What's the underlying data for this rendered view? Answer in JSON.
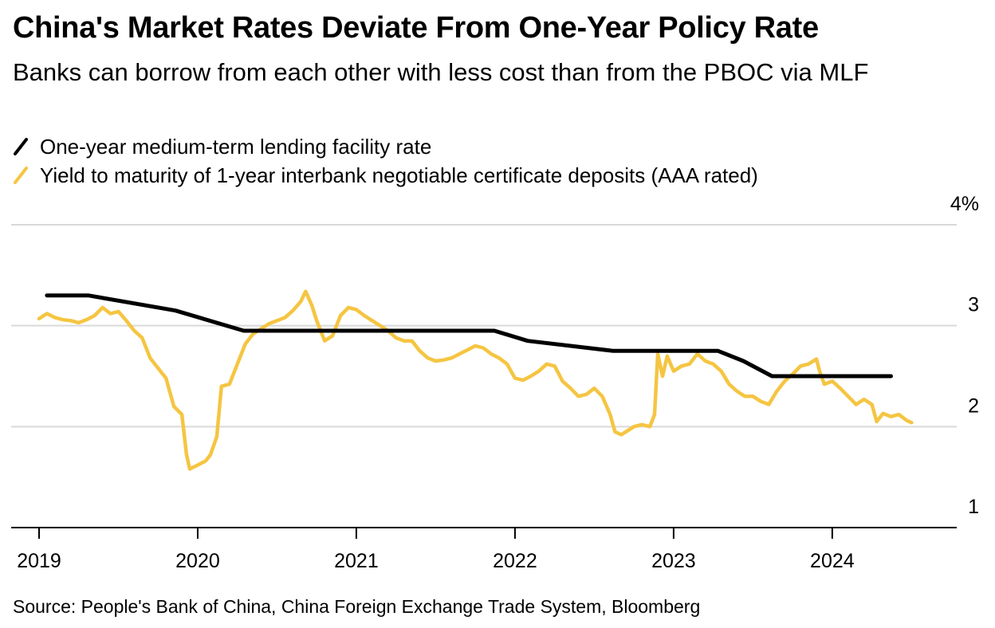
{
  "title": "China's Market Rates Deviate From One-Year Policy Rate",
  "subtitle": "Banks can borrow from each other with less cost than from the PBOC via MLF",
  "source": "Source: People's Bank of China, China Foreign Exchange Trade System, Bloomberg",
  "colors": {
    "mlf": "#000000",
    "ncd": "#f5c542",
    "grid": "#d9d9d9",
    "axis": "#000000"
  },
  "legend": [
    {
      "label": "One-year medium-term lending facility rate",
      "color": "#000000"
    },
    {
      "label": "Yield to maturity of 1-year interbank negotiable certificate deposits (AAA rated)",
      "color": "#f5c542"
    }
  ],
  "chart_data": {
    "type": "line",
    "title": "China's Market Rates Deviate From One-Year Policy Rate",
    "xlabel": "",
    "ylabel": "",
    "xlim": [
      2019.0,
      2024.85
    ],
    "ylim": [
      1,
      4
    ],
    "y_ticks": [
      {
        "value": 4,
        "label": "4%"
      },
      {
        "value": 3,
        "label": "3"
      },
      {
        "value": 2,
        "label": "2"
      },
      {
        "value": 1,
        "label": "1"
      }
    ],
    "x_ticks": [
      {
        "value": 2019,
        "label": "2019"
      },
      {
        "value": 2020,
        "label": "2020"
      },
      {
        "value": 2021,
        "label": "2021"
      },
      {
        "value": 2022,
        "label": "2022"
      },
      {
        "value": 2023,
        "label": "2023"
      },
      {
        "value": 2024,
        "label": "2024"
      }
    ],
    "grid": true,
    "legend_position": "top-left",
    "series": [
      {
        "name": "One-year medium-term lending facility rate",
        "color": "#000000",
        "step": true,
        "points": [
          [
            2019.05,
            3.3
          ],
          [
            2019.31,
            3.3
          ],
          [
            2019.86,
            3.15
          ],
          [
            2020.29,
            2.95
          ],
          [
            2021.87,
            2.95
          ],
          [
            2022.08,
            2.85
          ],
          [
            2022.62,
            2.75
          ],
          [
            2023.28,
            2.75
          ],
          [
            2023.44,
            2.65
          ],
          [
            2023.62,
            2.5
          ],
          [
            2024.37,
            2.5
          ]
        ]
      },
      {
        "name": "Yield to maturity of 1-year interbank negotiable certificate deposits (AAA rated)",
        "color": "#f5c542",
        "points": [
          [
            2019.0,
            3.07
          ],
          [
            2019.05,
            3.12
          ],
          [
            2019.1,
            3.08
          ],
          [
            2019.15,
            3.06
          ],
          [
            2019.2,
            3.05
          ],
          [
            2019.25,
            3.03
          ],
          [
            2019.3,
            3.06
          ],
          [
            2019.35,
            3.1
          ],
          [
            2019.4,
            3.18
          ],
          [
            2019.45,
            3.12
          ],
          [
            2019.5,
            3.14
          ],
          [
            2019.55,
            3.05
          ],
          [
            2019.6,
            2.95
          ],
          [
            2019.65,
            2.88
          ],
          [
            2019.7,
            2.68
          ],
          [
            2019.75,
            2.58
          ],
          [
            2019.8,
            2.48
          ],
          [
            2019.85,
            2.2
          ],
          [
            2019.9,
            2.12
          ],
          [
            2019.93,
            1.72
          ],
          [
            2019.95,
            1.58
          ],
          [
            2020.0,
            1.62
          ],
          [
            2020.05,
            1.66
          ],
          [
            2020.08,
            1.72
          ],
          [
            2020.12,
            1.9
          ],
          [
            2020.15,
            2.4
          ],
          [
            2020.2,
            2.42
          ],
          [
            2020.25,
            2.62
          ],
          [
            2020.3,
            2.82
          ],
          [
            2020.35,
            2.92
          ],
          [
            2020.4,
            2.97
          ],
          [
            2020.45,
            3.02
          ],
          [
            2020.5,
            3.05
          ],
          [
            2020.55,
            3.08
          ],
          [
            2020.6,
            3.15
          ],
          [
            2020.65,
            3.24
          ],
          [
            2020.68,
            3.34
          ],
          [
            2020.72,
            3.2
          ],
          [
            2020.75,
            3.05
          ],
          [
            2020.8,
            2.85
          ],
          [
            2020.85,
            2.9
          ],
          [
            2020.9,
            3.1
          ],
          [
            2020.95,
            3.18
          ],
          [
            2021.0,
            3.16
          ],
          [
            2021.05,
            3.1
          ],
          [
            2021.1,
            3.05
          ],
          [
            2021.15,
            3.0
          ],
          [
            2021.2,
            2.95
          ],
          [
            2021.25,
            2.88
          ],
          [
            2021.3,
            2.85
          ],
          [
            2021.35,
            2.85
          ],
          [
            2021.4,
            2.75
          ],
          [
            2021.45,
            2.68
          ],
          [
            2021.5,
            2.65
          ],
          [
            2021.55,
            2.66
          ],
          [
            2021.6,
            2.68
          ],
          [
            2021.65,
            2.72
          ],
          [
            2021.7,
            2.76
          ],
          [
            2021.75,
            2.8
          ],
          [
            2021.8,
            2.78
          ],
          [
            2021.85,
            2.72
          ],
          [
            2021.9,
            2.68
          ],
          [
            2021.95,
            2.62
          ],
          [
            2022.0,
            2.48
          ],
          [
            2022.05,
            2.46
          ],
          [
            2022.1,
            2.5
          ],
          [
            2022.15,
            2.55
          ],
          [
            2022.2,
            2.62
          ],
          [
            2022.25,
            2.6
          ],
          [
            2022.3,
            2.45
          ],
          [
            2022.35,
            2.38
          ],
          [
            2022.4,
            2.3
          ],
          [
            2022.45,
            2.32
          ],
          [
            2022.5,
            2.38
          ],
          [
            2022.55,
            2.3
          ],
          [
            2022.6,
            2.12
          ],
          [
            2022.63,
            1.95
          ],
          [
            2022.67,
            1.92
          ],
          [
            2022.7,
            1.95
          ],
          [
            2022.75,
            2.0
          ],
          [
            2022.8,
            2.02
          ],
          [
            2022.85,
            2.0
          ],
          [
            2022.88,
            2.12
          ],
          [
            2022.9,
            2.72
          ],
          [
            2022.93,
            2.5
          ],
          [
            2022.96,
            2.7
          ],
          [
            2023.0,
            2.55
          ],
          [
            2023.05,
            2.6
          ],
          [
            2023.1,
            2.62
          ],
          [
            2023.15,
            2.72
          ],
          [
            2023.2,
            2.65
          ],
          [
            2023.25,
            2.62
          ],
          [
            2023.3,
            2.55
          ],
          [
            2023.35,
            2.42
          ],
          [
            2023.4,
            2.35
          ],
          [
            2023.45,
            2.3
          ],
          [
            2023.5,
            2.3
          ],
          [
            2023.55,
            2.25
          ],
          [
            2023.6,
            2.22
          ],
          [
            2023.65,
            2.35
          ],
          [
            2023.7,
            2.45
          ],
          [
            2023.75,
            2.52
          ],
          [
            2023.8,
            2.6
          ],
          [
            2023.85,
            2.62
          ],
          [
            2023.9,
            2.67
          ],
          [
            2023.92,
            2.55
          ],
          [
            2023.95,
            2.42
          ],
          [
            2024.0,
            2.45
          ],
          [
            2024.05,
            2.38
          ],
          [
            2024.1,
            2.3
          ],
          [
            2024.15,
            2.22
          ],
          [
            2024.2,
            2.27
          ],
          [
            2024.25,
            2.22
          ],
          [
            2024.28,
            2.05
          ],
          [
            2024.32,
            2.13
          ],
          [
            2024.37,
            2.1
          ],
          [
            2024.42,
            2.12
          ],
          [
            2024.47,
            2.06
          ],
          [
            2024.5,
            2.04
          ]
        ]
      }
    ]
  }
}
